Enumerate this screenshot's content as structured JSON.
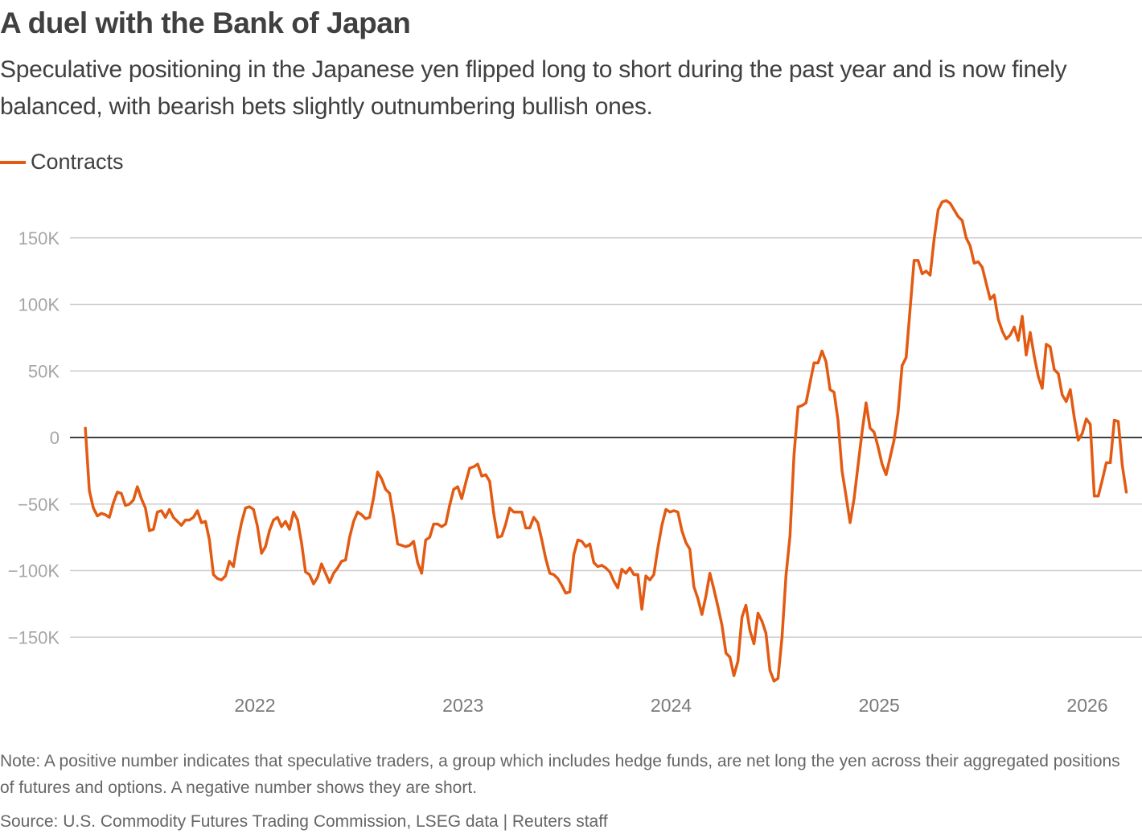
{
  "title": "A duel with the Bank of Japan",
  "subtitle": "Speculative positioning in the Japanese yen flipped long to short during the past year and is now finely balanced, with bearish bets slightly outnumbering bullish ones.",
  "note": "Note: A positive number indicates that speculative traders, a group which includes hedge funds, are net long the yen across their aggregated positions of futures and options. A negative number shows they are short.",
  "source": "Source: U.S. Commodity Futures Trading Commission, LSEG data | Reuters staff",
  "colors": {
    "series": "#e35a12",
    "grid": "#cccccc",
    "zero_line": "#404040"
  },
  "chart_data": {
    "type": "line",
    "title": "A duel with the Bank of Japan",
    "xlabel": "",
    "ylabel": "",
    "legend": {
      "position": "top-left",
      "entries": [
        "Contracts"
      ]
    },
    "grid": true,
    "ylim": [
      -190,
      185
    ],
    "xlim": [
      2021.1,
      2026.27
    ],
    "y_ticks": [
      150,
      100,
      50,
      0,
      -50,
      -100,
      -150
    ],
    "y_tick_labels": [
      "150K",
      "100K",
      "50K",
      "0",
      "−50K",
      "−100K",
      "−150K"
    ],
    "x_ticks": [
      2022,
      2023,
      2024,
      2025,
      2026
    ],
    "x_tick_labels": [
      "2022",
      "2023",
      "2024",
      "2025",
      "2026"
    ],
    "units": "thousand contracts",
    "series": [
      {
        "name": "Contracts",
        "start_year": 2021.185,
        "step_years": 0.01924,
        "values": [
          7,
          -40,
          -53,
          -59,
          -57,
          -58,
          -60,
          -49,
          -41,
          -42,
          -51,
          -50,
          -47,
          -37,
          -46,
          -53,
          -70,
          -69,
          -56,
          -55,
          -60,
          -54,
          -60,
          -63,
          -66,
          -62,
          -62,
          -60,
          -55,
          -64,
          -63,
          -77,
          -103,
          -106,
          -107,
          -104,
          -93,
          -97,
          -79,
          -64,
          -53,
          -52,
          -54,
          -67,
          -87,
          -82,
          -70,
          -62,
          -60,
          -67,
          -63,
          -69,
          -56,
          -62,
          -79,
          -101,
          -103,
          -110,
          -105,
          -95,
          -102,
          -109,
          -102,
          -98,
          -93,
          -92,
          -75,
          -63,
          -56,
          -58,
          -61,
          -60,
          -45,
          -26,
          -31,
          -39,
          -42,
          -60,
          -80,
          -81,
          -82,
          -81,
          -78,
          -94,
          -102,
          -77,
          -75,
          -65,
          -65,
          -67,
          -65,
          -51,
          -39,
          -37,
          -46,
          -34,
          -23,
          -22,
          -20,
          -29,
          -28,
          -33,
          -57,
          -75,
          -74,
          -65,
          -53,
          -56,
          -56,
          -56,
          -68,
          -68,
          -60,
          -64,
          -77,
          -91,
          -102,
          -103,
          -106,
          -111,
          -117,
          -116,
          -88,
          -77,
          -78,
          -82,
          -80,
          -94,
          -97,
          -96,
          -98,
          -101,
          -108,
          -113,
          -99,
          -102,
          -98,
          -103,
          -103,
          -129,
          -104,
          -107,
          -103,
          -83,
          -66,
          -54,
          -56,
          -55,
          -56,
          -70,
          -79,
          -84,
          -112,
          -121,
          -133,
          -119,
          -102,
          -114,
          -127,
          -141,
          -162,
          -165,
          -179,
          -168,
          -135,
          -126,
          -145,
          -155,
          -132,
          -138,
          -147,
          -175,
          -183,
          -181,
          -150,
          -104,
          -74,
          -13,
          23,
          24,
          26,
          41,
          56,
          56,
          65,
          57,
          36,
          34,
          13,
          -25,
          -44,
          -64,
          -46,
          -21,
          4,
          26,
          7,
          4,
          -7,
          -20,
          -28,
          -15,
          -2,
          19,
          54,
          60,
          97,
          133,
          133,
          123,
          125,
          122,
          149,
          171,
          177,
          178,
          176,
          171,
          166,
          163,
          150,
          144,
          131,
          132,
          128,
          116,
          104,
          107,
          89,
          80,
          74,
          77,
          83,
          73,
          91,
          62,
          79,
          61,
          46,
          37,
          70,
          68,
          51,
          48,
          32,
          27,
          36,
          15,
          -2,
          3,
          14,
          10,
          -44,
          -44,
          -32,
          -19,
          -19,
          13,
          12,
          -21,
          -41
        ]
      }
    ]
  }
}
